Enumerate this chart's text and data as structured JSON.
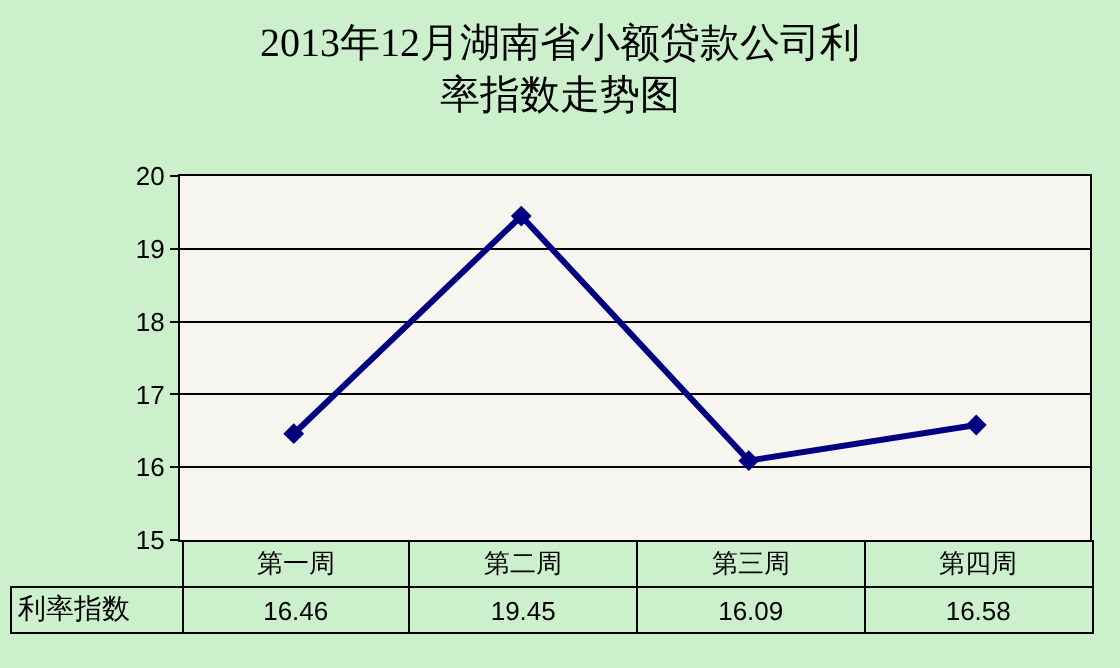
{
  "chart_data": {
    "type": "line",
    "title": "2013年12月湖南省小额贷款公司利率指数走势图",
    "categories": [
      "第一周",
      "第二周",
      "第三周",
      "第四周"
    ],
    "series": [
      {
        "name": "利率指数",
        "color": "#000080",
        "values": [
          16.46,
          19.45,
          16.09,
          16.58
        ]
      }
    ],
    "ylim": [
      15,
      20
    ],
    "yticks": [
      15,
      16,
      17,
      18,
      19,
      20
    ],
    "grid": "y",
    "legend": false,
    "marker": "diamond",
    "line_style": "solid",
    "data_labels": true
  }
}
